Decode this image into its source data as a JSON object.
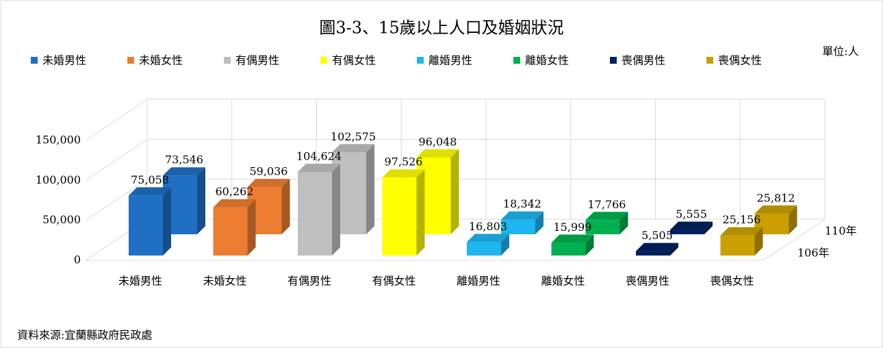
{
  "chart_data": {
    "type": "bar3d",
    "title": "圖3-3、15歲以上人口及婚姻狀況",
    "unit": "單位:人",
    "source": "資料來源:宜蘭縣政府民政處",
    "categories": [
      "未婚男性",
      "未婚女性",
      "有偶男性",
      "有偶女性",
      "離婚男性",
      "離婚女性",
      "喪偶男性",
      "喪偶女性"
    ],
    "colors": [
      "#1f6fc5",
      "#ed7d31",
      "#bfbfbf",
      "#ffff00",
      "#1fb5ef",
      "#00b050",
      "#002060",
      "#c9a000"
    ],
    "series": [
      {
        "name": "106年",
        "values": [
          75058,
          60262,
          104624,
          97526,
          16803,
          15999,
          5505,
          25156
        ],
        "value_labels": [
          "75,058",
          "60,262",
          "104,624",
          "97,526",
          "16,803",
          "15,999",
          "5,505",
          "25,156"
        ]
      },
      {
        "name": "110年",
        "values": [
          73546,
          59036,
          102575,
          96048,
          18342,
          17766,
          5555,
          25812
        ],
        "value_labels": [
          "73,546",
          "59,036",
          "102,575",
          "96,048",
          "18,342",
          "17,766",
          "5,555",
          "25,812"
        ]
      }
    ],
    "ylim": [
      0,
      150000
    ],
    "yticks": [
      {
        "value": 0,
        "label": "0"
      },
      {
        "value": 50000,
        "label": "50,000"
      },
      {
        "value": 100000,
        "label": "100,000"
      },
      {
        "value": 150000,
        "label": "150,000"
      }
    ],
    "grid": true
  }
}
